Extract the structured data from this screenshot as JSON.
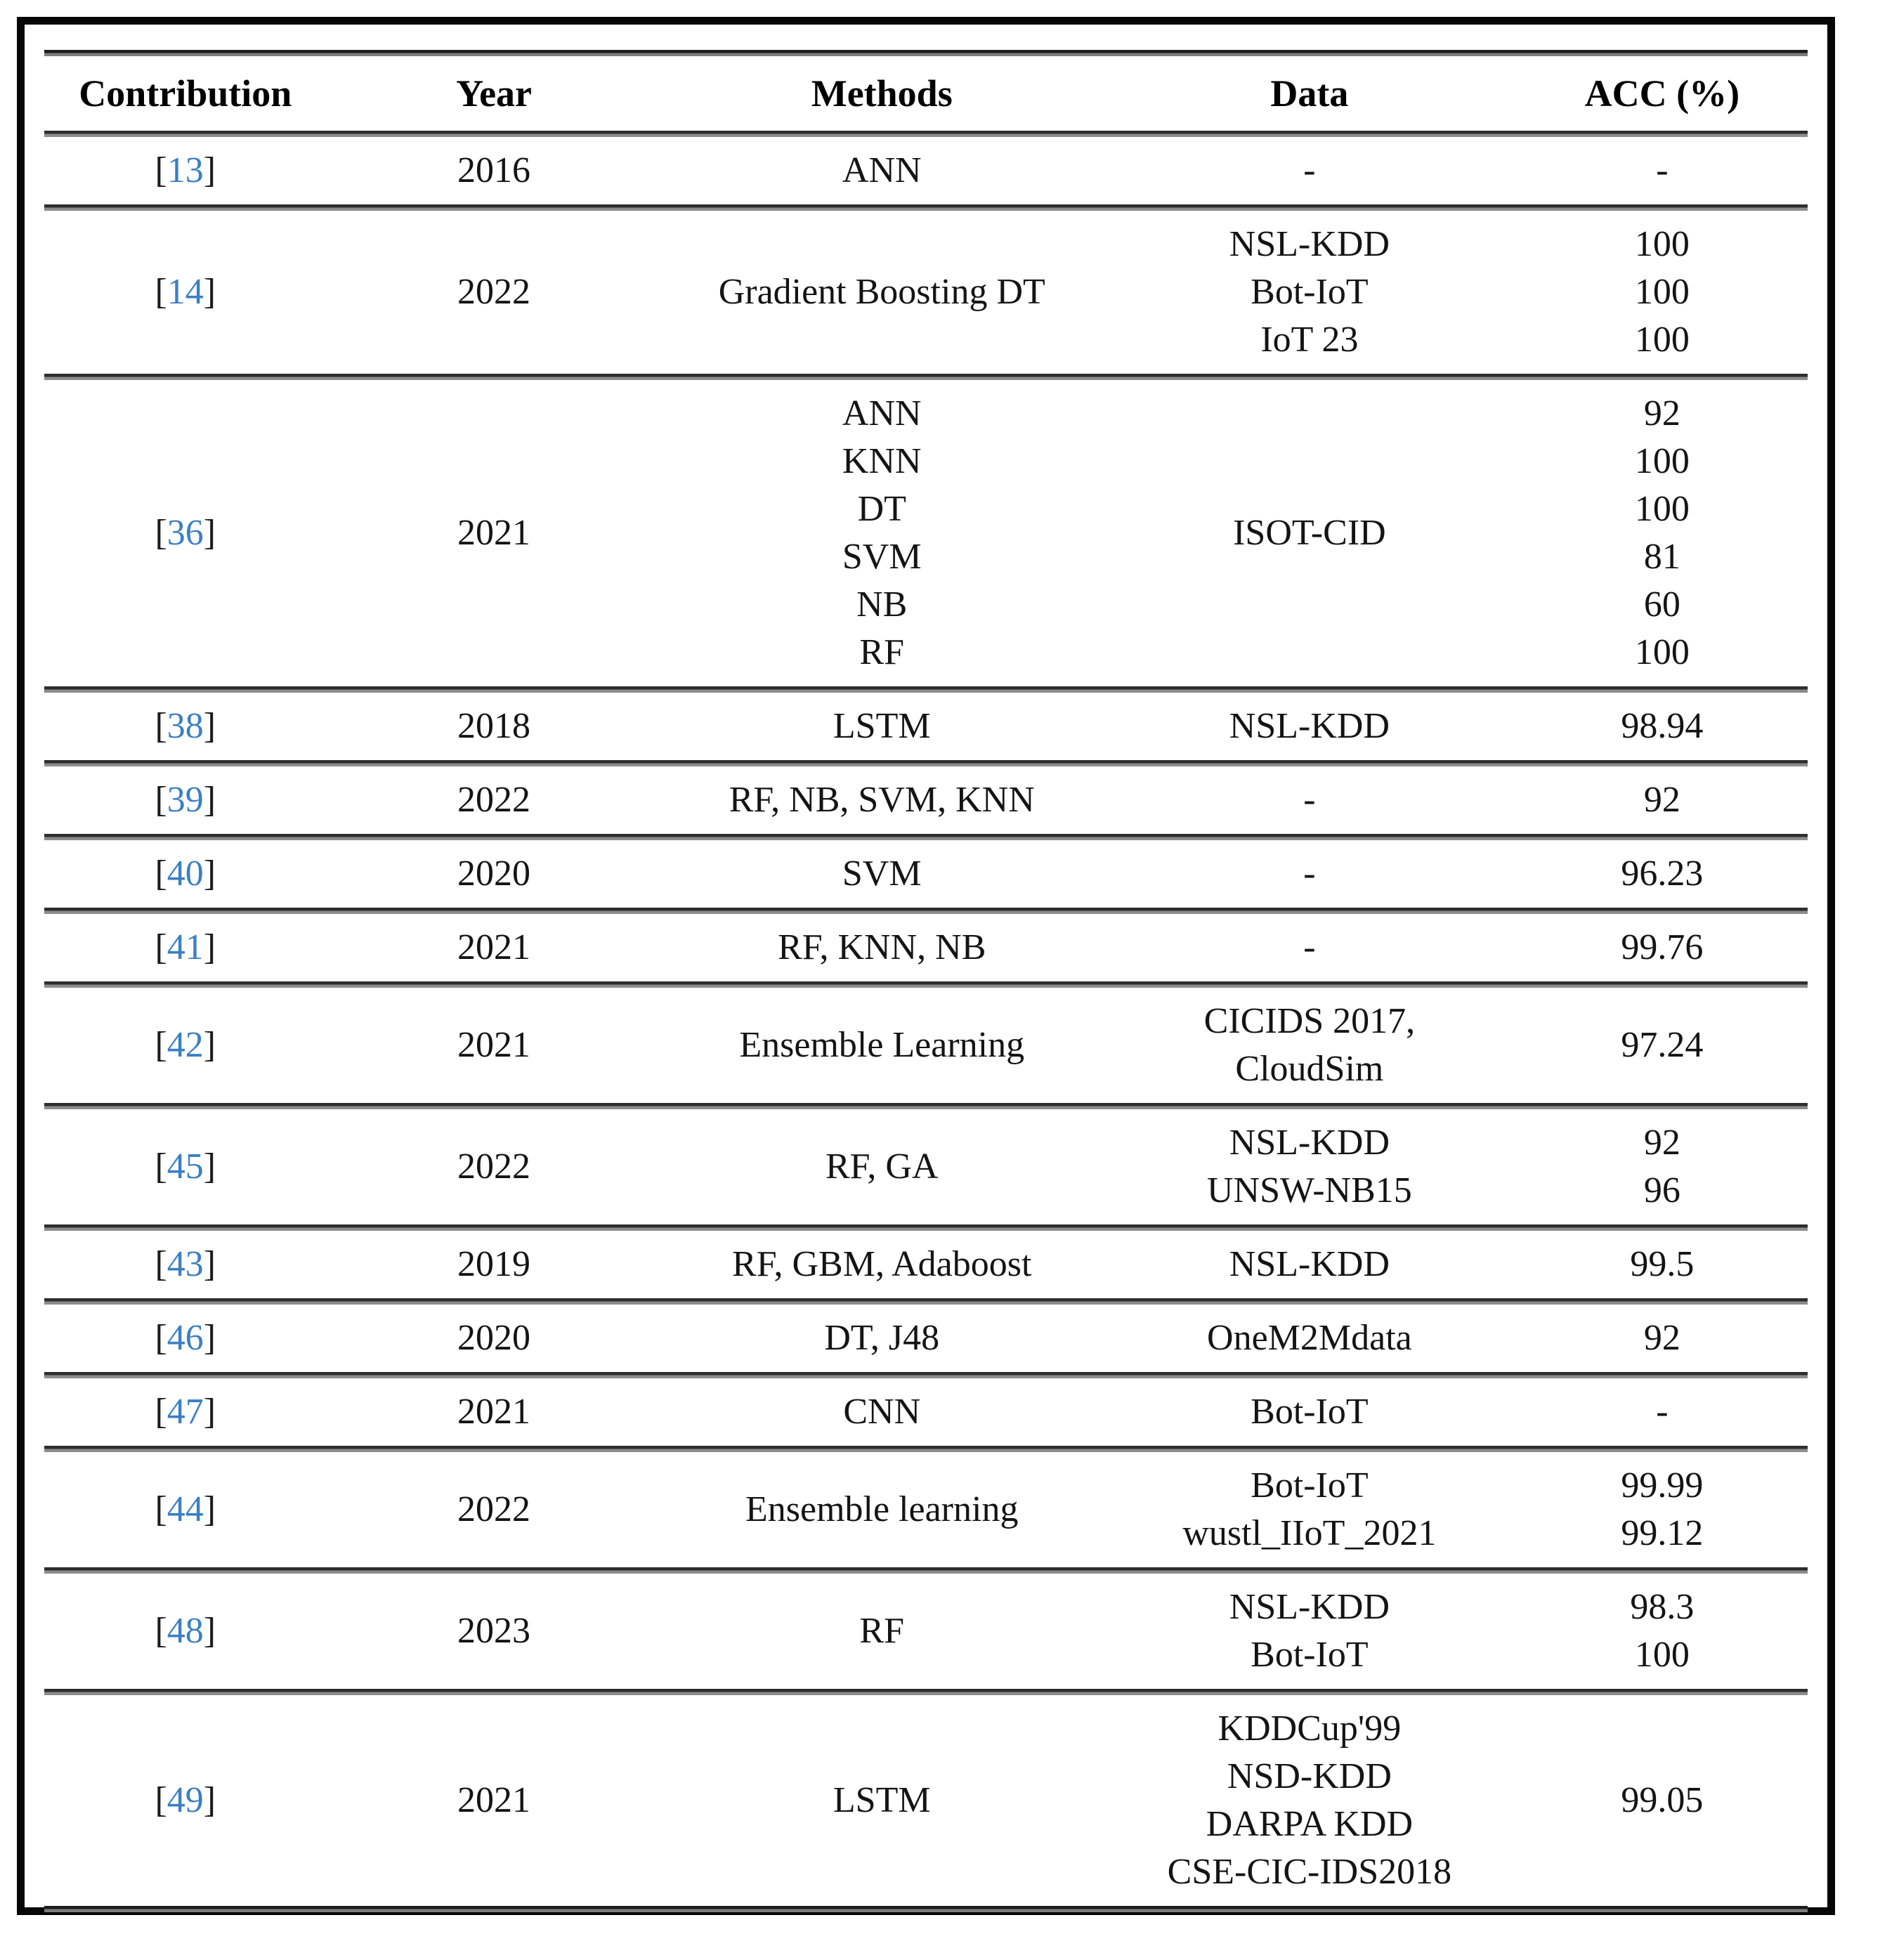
{
  "table": {
    "citation_brackets": {
      "open": "[",
      "close": "]"
    },
    "citation_color": "#3b7fc2",
    "columns": [
      "Contribution",
      "Year",
      "Methods",
      "Data",
      "ACC (%)"
    ],
    "rows": [
      {
        "contribution": "13",
        "year": "2016",
        "methods": [
          "ANN"
        ],
        "data": [
          "-"
        ],
        "acc": [
          "-"
        ]
      },
      {
        "contribution": "14",
        "year": "2022",
        "methods": [
          "Gradient Boosting DT"
        ],
        "data": [
          "NSL-KDD",
          "Bot-IoT",
          "IoT 23"
        ],
        "acc": [
          "100",
          "100",
          "100"
        ]
      },
      {
        "contribution": "36",
        "year": "2021",
        "methods": [
          "ANN",
          "KNN",
          "DT",
          "SVM",
          "NB",
          "RF"
        ],
        "data": [
          "ISOT-CID"
        ],
        "acc": [
          "92",
          "100",
          "100",
          "81",
          "60",
          "100"
        ]
      },
      {
        "contribution": "38",
        "year": "2018",
        "methods": [
          "LSTM"
        ],
        "data": [
          "NSL-KDD"
        ],
        "acc": [
          "98.94"
        ]
      },
      {
        "contribution": "39",
        "year": "2022",
        "methods": [
          "RF, NB, SVM, KNN"
        ],
        "data": [
          "-"
        ],
        "acc": [
          "92"
        ]
      },
      {
        "contribution": "40",
        "year": "2020",
        "methods": [
          "SVM"
        ],
        "data": [
          "-"
        ],
        "acc": [
          "96.23"
        ]
      },
      {
        "contribution": "41",
        "year": "2021",
        "methods": [
          "RF, KNN, NB"
        ],
        "data": [
          "-"
        ],
        "acc": [
          "99.76"
        ]
      },
      {
        "contribution": "42",
        "year": "2021",
        "methods": [
          "Ensemble Learning"
        ],
        "data": [
          "CICIDS 2017,",
          "CloudSim"
        ],
        "acc": [
          "97.24"
        ]
      },
      {
        "contribution": "45",
        "year": "2022",
        "methods": [
          "RF, GA"
        ],
        "data": [
          "NSL-KDD",
          "UNSW-NB15"
        ],
        "acc": [
          "92",
          "96"
        ]
      },
      {
        "contribution": "43",
        "year": "2019",
        "methods": [
          "RF, GBM, Adaboost"
        ],
        "data": [
          "NSL-KDD"
        ],
        "acc": [
          "99.5"
        ]
      },
      {
        "contribution": "46",
        "year": "2020",
        "methods": [
          "DT, J48"
        ],
        "data": [
          "OneM2Mdata"
        ],
        "acc": [
          "92"
        ]
      },
      {
        "contribution": "47",
        "year": "2021",
        "methods": [
          "CNN"
        ],
        "data": [
          "Bot-IoT"
        ],
        "acc": [
          "-"
        ]
      },
      {
        "contribution": "44",
        "year": "2022",
        "methods": [
          "Ensemble learning"
        ],
        "data": [
          "Bot-IoT",
          "wustl_IIoT_2021"
        ],
        "acc": [
          "99.99",
          "99.12"
        ]
      },
      {
        "contribution": "48",
        "year": "2023",
        "methods": [
          "RF"
        ],
        "data": [
          "NSL-KDD",
          "Bot-IoT"
        ],
        "acc": [
          "98.3",
          "100"
        ]
      },
      {
        "contribution": "49",
        "year": "2021",
        "methods": [
          "LSTM"
        ],
        "data": [
          "KDDCup'99",
          "NSD-KDD",
          "DARPA KDD",
          "CSE-CIC-IDS2018"
        ],
        "acc": [
          "99.05"
        ]
      }
    ]
  }
}
